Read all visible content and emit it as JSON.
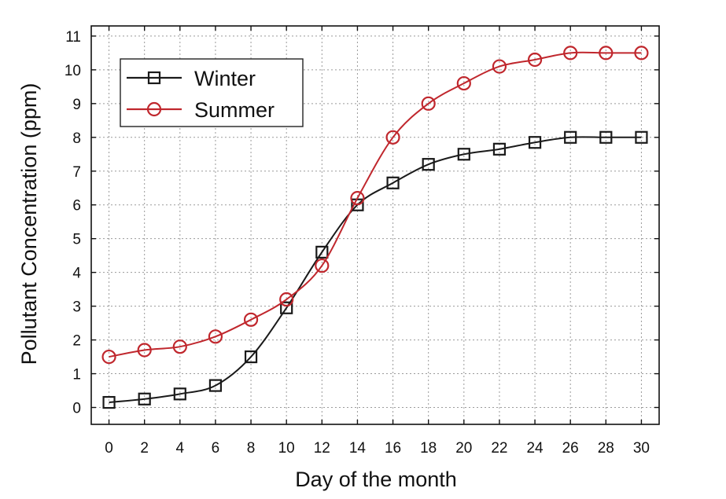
{
  "chart_data": {
    "type": "line",
    "title": "",
    "xlabel": "Day of the month",
    "ylabel": "Pollutant Concentration (ppm)",
    "xlim": [
      -1,
      31
    ],
    "ylim": [
      -0.5,
      11.3
    ],
    "x_ticks": [
      0,
      2,
      4,
      6,
      8,
      10,
      12,
      14,
      16,
      18,
      20,
      22,
      24,
      26,
      28,
      30
    ],
    "y_ticks": [
      0,
      1,
      2,
      3,
      4,
      5,
      6,
      7,
      8,
      9,
      10,
      11
    ],
    "grid": true,
    "legend_position": "top-left",
    "x": [
      0,
      2,
      4,
      6,
      8,
      10,
      12,
      14,
      16,
      18,
      20,
      22,
      24,
      26,
      28,
      30
    ],
    "series": [
      {
        "name": "Winter",
        "color": "#1a1a1a",
        "marker": "square",
        "values": [
          0.15,
          0.25,
          0.4,
          0.65,
          1.5,
          2.95,
          4.6,
          6.0,
          6.65,
          7.2,
          7.5,
          7.65,
          7.85,
          8.0,
          8.0,
          8.0
        ]
      },
      {
        "name": "Summer",
        "color": "#c0272d",
        "marker": "circle",
        "values": [
          1.5,
          1.7,
          1.8,
          2.1,
          2.6,
          3.2,
          4.2,
          6.2,
          8.0,
          9.0,
          9.6,
          10.1,
          10.3,
          10.5,
          10.5,
          10.5
        ]
      }
    ]
  }
}
